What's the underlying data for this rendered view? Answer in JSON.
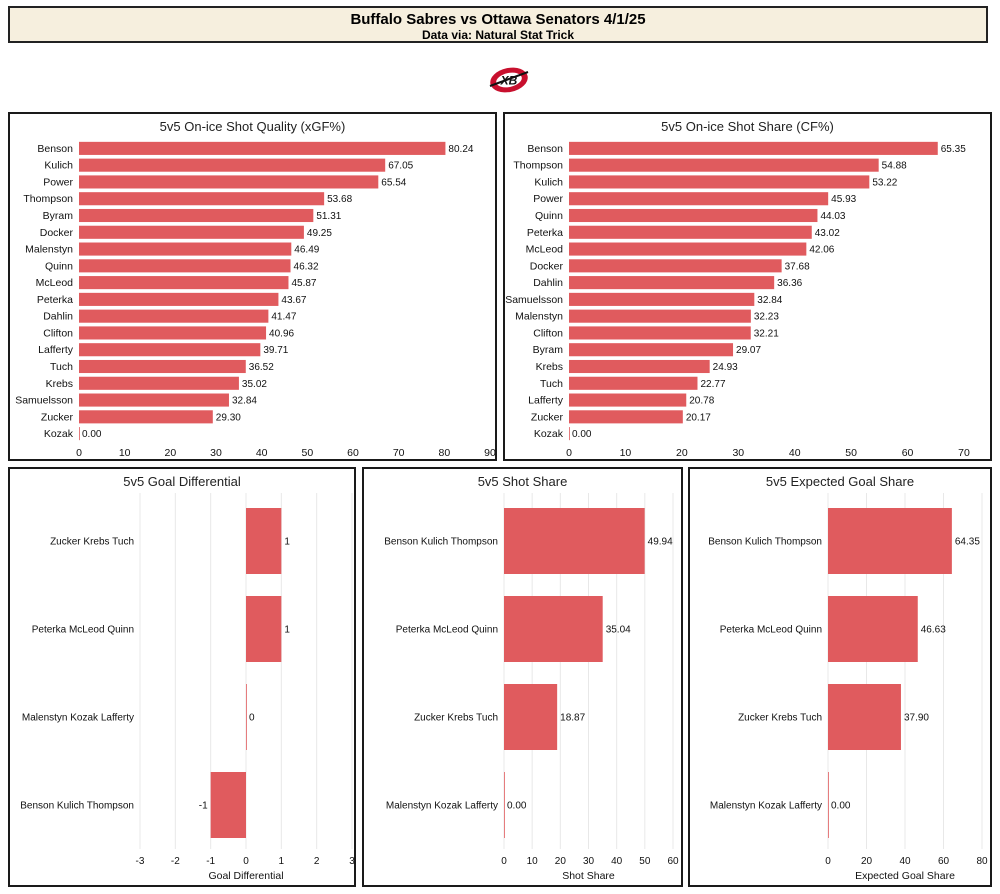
{
  "header": {
    "title": "Buffalo Sabres vs Ottawa Senators 4/1/25",
    "subtitle": "Data via: Natural Stat Trick"
  },
  "logo": {
    "text": "XB",
    "icon": "xb-logo-icon"
  },
  "colors": {
    "bar": "#e05b5e",
    "grid": "#e8e8e8",
    "header_bg": "#f6efde"
  },
  "chart_data": [
    {
      "type": "bar",
      "orientation": "horizontal",
      "title": "5v5 On-ice Shot Quality (xGF%)",
      "xlabel": "",
      "categories": [
        "Benson",
        "Kulich",
        "Power",
        "Thompson",
        "Byram",
        "Docker",
        "Malenstyn",
        "Quinn",
        "McLeod",
        "Peterka",
        "Dahlin",
        "Clifton",
        "Lafferty",
        "Tuch",
        "Krebs",
        "Samuelsson",
        "Zucker",
        "Kozak"
      ],
      "values": [
        80.24,
        67.05,
        65.54,
        53.68,
        51.31,
        49.25,
        46.49,
        46.32,
        45.87,
        43.67,
        41.47,
        40.96,
        39.71,
        36.52,
        35.02,
        32.84,
        29.3,
        0.0
      ],
      "value_labels": [
        "80.24",
        "67.05",
        "65.54",
        "53.68",
        "51.31",
        "49.25",
        "46.49",
        "46.32",
        "45.87",
        "43.67",
        "41.47",
        "40.96",
        "39.71",
        "36.52",
        "35.02",
        "32.84",
        "29.30",
        "0.00"
      ],
      "xlim": [
        0,
        90
      ],
      "ticks": [
        0,
        10,
        20,
        30,
        40,
        50,
        60,
        70,
        80,
        90
      ],
      "tick_labels": [
        "0",
        "10",
        "20",
        "30",
        "40",
        "50",
        "60",
        "70",
        "80",
        "90"
      ],
      "grid": false
    },
    {
      "type": "bar",
      "orientation": "horizontal",
      "title": "5v5 On-ice Shot Share (CF%)",
      "xlabel": "",
      "categories": [
        "Benson",
        "Thompson",
        "Kulich",
        "Power",
        "Quinn",
        "Peterka",
        "McLeod",
        "Docker",
        "Dahlin",
        "Samuelsson",
        "Malenstyn",
        "Clifton",
        "Byram",
        "Krebs",
        "Tuch",
        "Lafferty",
        "Zucker",
        "Kozak"
      ],
      "values": [
        65.35,
        54.88,
        53.22,
        45.93,
        44.03,
        43.02,
        42.06,
        37.68,
        36.36,
        32.84,
        32.23,
        32.21,
        29.07,
        24.93,
        22.77,
        20.78,
        20.17,
        0.0
      ],
      "value_labels": [
        "65.35",
        "54.88",
        "53.22",
        "45.93",
        "44.03",
        "43.02",
        "42.06",
        "37.68",
        "36.36",
        "32.84",
        "32.23",
        "32.21",
        "29.07",
        "24.93",
        "22.77",
        "20.78",
        "20.17",
        "0.00"
      ],
      "xlim": [
        0,
        70
      ],
      "ticks": [
        0,
        10,
        20,
        30,
        40,
        50,
        60,
        70
      ],
      "tick_labels": [
        "0",
        "10",
        "20",
        "30",
        "40",
        "50",
        "60",
        "70"
      ],
      "grid": false
    },
    {
      "type": "bar",
      "orientation": "horizontal",
      "title": "5v5 Goal Differential",
      "xlabel": "Goal Differential",
      "categories": [
        "Zucker Krebs Tuch",
        "Peterka McLeod Quinn",
        "Malenstyn Kozak Lafferty",
        "Benson Kulich Thompson"
      ],
      "values": [
        1,
        1,
        0,
        -1
      ],
      "value_labels": [
        "1",
        "1",
        "0",
        "-1"
      ],
      "xlim": [
        -3,
        3
      ],
      "ticks": [
        -3,
        -2,
        -1,
        0,
        1,
        2,
        3
      ],
      "tick_labels": [
        "-3",
        "-2",
        "-1",
        "0",
        "1",
        "2",
        "3"
      ],
      "grid": true
    },
    {
      "type": "bar",
      "orientation": "horizontal",
      "title": "5v5 Shot Share",
      "xlabel": "Shot Share",
      "categories": [
        "Benson Kulich Thompson",
        "Peterka McLeod Quinn",
        "Zucker Krebs Tuch",
        "Malenstyn Kozak Lafferty"
      ],
      "values": [
        49.94,
        35.04,
        18.87,
        0.0
      ],
      "value_labels": [
        "49.94",
        "35.04",
        "18.87",
        "0.00"
      ],
      "xlim": [
        0,
        60
      ],
      "ticks": [
        0,
        10,
        20,
        30,
        40,
        50,
        60
      ],
      "tick_labels": [
        "0",
        "10",
        "20",
        "30",
        "40",
        "50",
        "60"
      ],
      "grid": true
    },
    {
      "type": "bar",
      "orientation": "horizontal",
      "title": "5v5 Expected Goal Share",
      "xlabel": "Expected Goal Share",
      "categories": [
        "Benson Kulich Thompson",
        "Peterka McLeod Quinn",
        "Zucker Krebs Tuch",
        "Malenstyn Kozak Lafferty"
      ],
      "values": [
        64.35,
        46.63,
        37.9,
        0.0
      ],
      "value_labels": [
        "64.35",
        "46.63",
        "37.90",
        "0.00"
      ],
      "xlim": [
        0,
        80
      ],
      "ticks": [
        0,
        20,
        40,
        60,
        80
      ],
      "tick_labels": [
        "0",
        "20",
        "40",
        "60",
        "80"
      ],
      "grid": true
    }
  ]
}
